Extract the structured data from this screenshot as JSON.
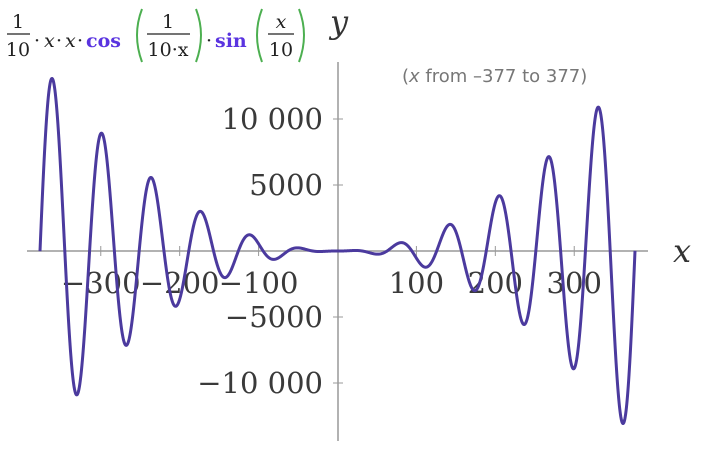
{
  "formula": {
    "coef_num": "1",
    "coef_den": "10",
    "dot": "·",
    "var": "x",
    "cos_name": "cos",
    "cos_arg_num": "1",
    "cos_arg_den": "10·x",
    "sin_name": "sin",
    "sin_arg_num": "x",
    "sin_arg_den": "10"
  },
  "range_note": {
    "open": "(",
    "var": "x",
    "text": " from –377 to 377)"
  },
  "colors": {
    "curve": "#4b3a9e",
    "axis": "#999999",
    "function_name": "#5a34e0",
    "bracket": "#4caf50"
  },
  "chart_data": {
    "type": "line",
    "expression": "(1/10)·x·x·cos(1/(10·x))·sin(x/10)",
    "x_range": [
      -377,
      377
    ],
    "xlim": [
      -377,
      377
    ],
    "ylim": [
      -13500,
      13500
    ],
    "xlabel": "x",
    "ylabel": "y",
    "x_ticks": [
      {
        "value": -300,
        "label": "−300"
      },
      {
        "value": -200,
        "label": "−200"
      },
      {
        "value": -100,
        "label": "−100"
      },
      {
        "value": 100,
        "label": "100"
      },
      {
        "value": 200,
        "label": "200"
      },
      {
        "value": 300,
        "label": "300"
      }
    ],
    "y_ticks": [
      {
        "value": 10000,
        "label": "10 000"
      },
      {
        "value": 5000,
        "label": "5000"
      },
      {
        "value": -5000,
        "label": "−5000"
      },
      {
        "value": -10000,
        "label": "−10 000"
      }
    ],
    "grid": false
  }
}
